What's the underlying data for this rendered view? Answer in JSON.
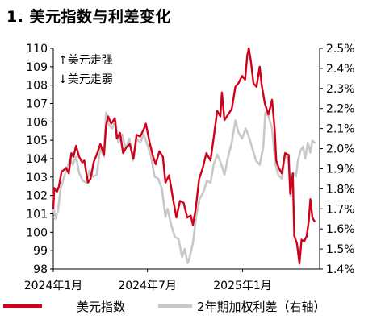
{
  "title": "1. 美元指数与利差变化",
  "chart_data": {
    "type": "line",
    "title": "1. 美元指数与利差变化",
    "x_range": [
      "2024-01-01",
      "2025-05-30"
    ],
    "x_ticks": [
      {
        "date": "2024-01-01",
        "label": "2024年1月"
      },
      {
        "date": "2024-07-01",
        "label": "2024年7月"
      },
      {
        "date": "2025-01-01",
        "label": "2025年1月"
      }
    ],
    "y_left": {
      "range": [
        98,
        110
      ],
      "ticks": [
        98,
        99,
        100,
        101,
        102,
        103,
        104,
        105,
        106,
        107,
        108,
        109,
        110
      ]
    },
    "y_right": {
      "range": [
        1.4,
        2.5
      ],
      "ticks": [
        "1.4%",
        "1.5%",
        "1.6%",
        "1.7%",
        "1.8%",
        "1.9%",
        "2.0%",
        "2.1%",
        "2.2%",
        "2.3%",
        "2.4%",
        "2.5%"
      ],
      "ticks_values": [
        1.4,
        1.5,
        1.6,
        1.7,
        1.8,
        1.9,
        2.0,
        2.1,
        2.2,
        2.3,
        2.4,
        2.5
      ]
    },
    "annotations": [
      "↑美元走强",
      "↓美元走弱"
    ],
    "grid": false,
    "legend_position": "bottom",
    "series": [
      {
        "name": "美元指数",
        "axis": "left",
        "color": "#d0021b",
        "points": [
          [
            "2024-01-01",
            101.3
          ],
          [
            "2024-01-03",
            102.4
          ],
          [
            "2024-01-08",
            102.2
          ],
          [
            "2024-01-12",
            102.5
          ],
          [
            "2024-01-17",
            103.3
          ],
          [
            "2024-01-22",
            103.4
          ],
          [
            "2024-01-26",
            103.5
          ],
          [
            "2024-01-31",
            103.2
          ],
          [
            "2024-02-05",
            104.3
          ],
          [
            "2024-02-09",
            104.1
          ],
          [
            "2024-02-14",
            104.7
          ],
          [
            "2024-02-20",
            104.1
          ],
          [
            "2024-02-26",
            103.8
          ],
          [
            "2024-03-01",
            103.9
          ],
          [
            "2024-03-08",
            102.7
          ],
          [
            "2024-03-13",
            102.9
          ],
          [
            "2024-03-19",
            103.8
          ],
          [
            "2024-03-26",
            104.3
          ],
          [
            "2024-04-01",
            104.8
          ],
          [
            "2024-04-08",
            104.2
          ],
          [
            "2024-04-12",
            105.8
          ],
          [
            "2024-04-16",
            106.3
          ],
          [
            "2024-04-22",
            105.9
          ],
          [
            "2024-04-29",
            106.2
          ],
          [
            "2024-05-03",
            105.1
          ],
          [
            "2024-05-09",
            105.4
          ],
          [
            "2024-05-15",
            104.3
          ],
          [
            "2024-05-21",
            104.6
          ],
          [
            "2024-05-28",
            104.8
          ],
          [
            "2024-06-04",
            104.0
          ],
          [
            "2024-06-10",
            105.3
          ],
          [
            "2024-06-17",
            105.2
          ],
          [
            "2024-06-24",
            105.6
          ],
          [
            "2024-06-28",
            105.9
          ],
          [
            "2024-07-05",
            104.9
          ],
          [
            "2024-07-12",
            104.1
          ],
          [
            "2024-07-17",
            103.7
          ],
          [
            "2024-07-24",
            104.4
          ],
          [
            "2024-07-31",
            104.1
          ],
          [
            "2024-08-05",
            102.7
          ],
          [
            "2024-08-12",
            103.1
          ],
          [
            "2024-08-19",
            101.9
          ],
          [
            "2024-08-26",
            100.8
          ],
          [
            "2024-09-02",
            101.7
          ],
          [
            "2024-09-09",
            101.6
          ],
          [
            "2024-09-16",
            100.8
          ],
          [
            "2024-09-23",
            100.9
          ],
          [
            "2024-09-27",
            100.4
          ],
          [
            "2024-10-02",
            101.2
          ],
          [
            "2024-10-09",
            102.9
          ],
          [
            "2024-10-16",
            103.5
          ],
          [
            "2024-10-23",
            104.3
          ],
          [
            "2024-10-31",
            103.9
          ],
          [
            "2024-11-06",
            105.1
          ],
          [
            "2024-11-13",
            106.6
          ],
          [
            "2024-11-19",
            106.3
          ],
          [
            "2024-11-22",
            107.6
          ],
          [
            "2024-11-27",
            106.1
          ],
          [
            "2024-12-04",
            106.4
          ],
          [
            "2024-12-11",
            106.7
          ],
          [
            "2024-12-18",
            107.9
          ],
          [
            "2024-12-24",
            108.1
          ],
          [
            "2024-12-31",
            108.5
          ],
          [
            "2025-01-06",
            108.3
          ],
          [
            "2025-01-10",
            109.6
          ],
          [
            "2025-01-13",
            110.0
          ],
          [
            "2025-01-17",
            109.3
          ],
          [
            "2025-01-22",
            108.1
          ],
          [
            "2025-01-28",
            107.9
          ],
          [
            "2025-02-03",
            109.0
          ],
          [
            "2025-02-07",
            108.0
          ],
          [
            "2025-02-13",
            107.0
          ],
          [
            "2025-02-20",
            106.4
          ],
          [
            "2025-02-27",
            107.2
          ],
          [
            "2025-03-04",
            105.6
          ],
          [
            "2025-03-07",
            103.9
          ],
          [
            "2025-03-12",
            103.5
          ],
          [
            "2025-03-18",
            103.2
          ],
          [
            "2025-03-24",
            104.3
          ],
          [
            "2025-03-31",
            104.2
          ],
          [
            "2025-04-03",
            102.1
          ],
          [
            "2025-04-08",
            103.2
          ],
          [
            "2025-04-11",
            99.8
          ],
          [
            "2025-04-16",
            99.4
          ],
          [
            "2025-04-21",
            98.3
          ],
          [
            "2025-04-25",
            99.6
          ],
          [
            "2025-04-30",
            99.5
          ],
          [
            "2025-05-05",
            99.8
          ],
          [
            "2025-05-09",
            100.6
          ],
          [
            "2025-05-12",
            101.8
          ],
          [
            "2025-05-16",
            100.8
          ],
          [
            "2025-05-20",
            100.6
          ]
        ]
      },
      {
        "name": "2年期加权利差（右轴）",
        "axis": "right",
        "color": "#c8c8c8",
        "points": [
          [
            "2024-01-01",
            1.71
          ],
          [
            "2024-01-05",
            1.65
          ],
          [
            "2024-01-10",
            1.69
          ],
          [
            "2024-01-15",
            1.8
          ],
          [
            "2024-01-22",
            1.86
          ],
          [
            "2024-01-29",
            1.91
          ],
          [
            "2024-02-02",
            1.95
          ],
          [
            "2024-02-08",
            1.92
          ],
          [
            "2024-02-14",
            1.96
          ],
          [
            "2024-02-20",
            1.88
          ],
          [
            "2024-02-27",
            1.84
          ],
          [
            "2024-03-05",
            1.83
          ],
          [
            "2024-03-11",
            1.89
          ],
          [
            "2024-03-18",
            1.86
          ],
          [
            "2024-03-25",
            1.87
          ],
          [
            "2024-04-01",
            2.0
          ],
          [
            "2024-04-08",
            1.96
          ],
          [
            "2024-04-12",
            2.18
          ],
          [
            "2024-04-17",
            2.12
          ],
          [
            "2024-04-24",
            2.1
          ],
          [
            "2024-04-30",
            2.14
          ],
          [
            "2024-05-06",
            2.03
          ],
          [
            "2024-05-13",
            2.07
          ],
          [
            "2024-05-20",
            2.0
          ],
          [
            "2024-05-27",
            2.05
          ],
          [
            "2024-06-03",
            1.94
          ],
          [
            "2024-06-10",
            2.05
          ],
          [
            "2024-06-17",
            2.03
          ],
          [
            "2024-06-24",
            2.07
          ],
          [
            "2024-07-01",
            2.02
          ],
          [
            "2024-07-08",
            1.96
          ],
          [
            "2024-07-15",
            1.86
          ],
          [
            "2024-07-22",
            1.85
          ],
          [
            "2024-07-29",
            1.8
          ],
          [
            "2024-08-05",
            1.66
          ],
          [
            "2024-08-09",
            1.7
          ],
          [
            "2024-08-16",
            1.62
          ],
          [
            "2024-08-23",
            1.56
          ],
          [
            "2024-08-30",
            1.55
          ],
          [
            "2024-09-06",
            1.46
          ],
          [
            "2024-09-11",
            1.5
          ],
          [
            "2024-09-17",
            1.43
          ],
          [
            "2024-09-20",
            1.45
          ],
          [
            "2024-09-27",
            1.53
          ],
          [
            "2024-10-03",
            1.66
          ],
          [
            "2024-10-10",
            1.75
          ],
          [
            "2024-10-17",
            1.78
          ],
          [
            "2024-10-24",
            1.84
          ],
          [
            "2024-10-31",
            1.83
          ],
          [
            "2024-11-06",
            1.92
          ],
          [
            "2024-11-13",
            1.97
          ],
          [
            "2024-11-20",
            1.93
          ],
          [
            "2024-11-27",
            1.87
          ],
          [
            "2024-12-04",
            1.96
          ],
          [
            "2024-12-11",
            2.03
          ],
          [
            "2024-12-18",
            2.14
          ],
          [
            "2024-12-24",
            2.08
          ],
          [
            "2024-12-31",
            2.05
          ],
          [
            "2025-01-07",
            2.1
          ],
          [
            "2025-01-13",
            2.06
          ],
          [
            "2025-01-20",
            2.0
          ],
          [
            "2025-01-27",
            1.94
          ],
          [
            "2025-02-03",
            1.92
          ],
          [
            "2025-02-10",
            2.01
          ],
          [
            "2025-02-14",
            2.18
          ],
          [
            "2025-02-20",
            2.16
          ],
          [
            "2025-02-27",
            2.1
          ],
          [
            "2025-03-05",
            1.93
          ],
          [
            "2025-03-11",
            1.87
          ],
          [
            "2025-03-18",
            1.85
          ],
          [
            "2025-03-25",
            1.98
          ],
          [
            "2025-03-31",
            1.93
          ],
          [
            "2025-04-04",
            1.76
          ],
          [
            "2025-04-09",
            1.88
          ],
          [
            "2025-04-14",
            1.86
          ],
          [
            "2025-04-18",
            1.94
          ],
          [
            "2025-04-23",
            1.99
          ],
          [
            "2025-04-28",
            2.01
          ],
          [
            "2025-05-02",
            1.95
          ],
          [
            "2025-05-07",
            2.03
          ],
          [
            "2025-05-12",
            1.98
          ],
          [
            "2025-05-16",
            2.04
          ],
          [
            "2025-05-20",
            2.03
          ]
        ]
      }
    ]
  }
}
